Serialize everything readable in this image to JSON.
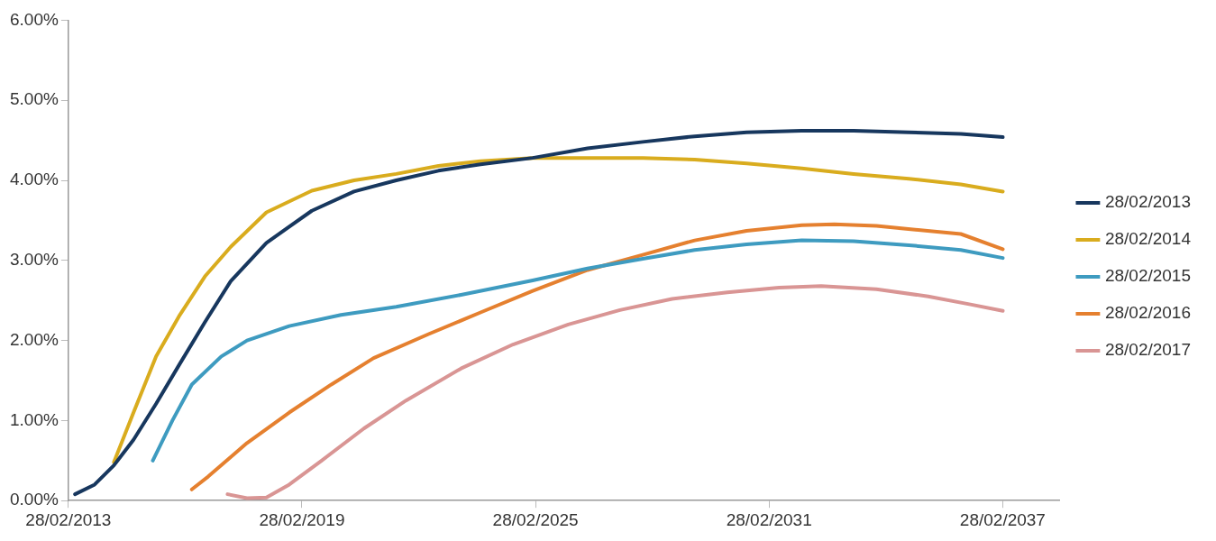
{
  "chart_data": {
    "type": "line",
    "legend": "right",
    "grid": false,
    "marker": "none",
    "line_style": "solid",
    "xlim": [
      "2013-02-28",
      "2038-08-15"
    ],
    "xticks": [
      {
        "value": "2013-02-28",
        "label": "28/02/2013"
      },
      {
        "value": "2019-02-28",
        "label": "28/02/2019"
      },
      {
        "value": "2025-02-28",
        "label": "28/02/2025"
      },
      {
        "value": "2031-02-28",
        "label": "28/02/2031"
      },
      {
        "value": "2037-02-28",
        "label": "28/02/2037"
      }
    ],
    "ylim": [
      0,
      6
    ],
    "yticks": [
      {
        "value": 0,
        "label": "0.00%"
      },
      {
        "value": 1,
        "label": "1.00%"
      },
      {
        "value": 2,
        "label": "2.00%"
      },
      {
        "value": 3,
        "label": "3.00%"
      },
      {
        "value": 4,
        "label": "4.00%"
      },
      {
        "value": 5,
        "label": "5.00%"
      },
      {
        "value": 6,
        "label": "6.00%"
      }
    ],
    "series": [
      {
        "name": "28/02/2013",
        "color": "#17375e",
        "x": [
          "2013-05",
          "2013-11",
          "2014-05",
          "2014-11",
          "2015-06",
          "2016-01",
          "2016-09",
          "2017-05",
          "2018-04",
          "2019-06",
          "2020-07",
          "2021-08",
          "2022-09",
          "2023-10",
          "2025-02",
          "2026-07",
          "2027-12",
          "2029-04",
          "2030-08",
          "2032-01",
          "2033-05",
          "2034-10",
          "2036-02",
          "2037-03"
        ],
        "values": [
          0.08,
          0.2,
          0.44,
          0.76,
          1.21,
          1.69,
          2.23,
          2.74,
          3.22,
          3.62,
          3.86,
          4.0,
          4.12,
          4.2,
          4.28,
          4.4,
          4.48,
          4.55,
          4.6,
          4.62,
          4.62,
          4.6,
          4.58,
          4.54
        ]
      },
      {
        "name": "28/02/2014",
        "color": "#d9ac1e",
        "x": [
          "2014-05",
          "2014-11",
          "2015-06",
          "2016-01",
          "2016-09",
          "2017-05",
          "2018-04",
          "2019-06",
          "2020-07",
          "2021-08",
          "2022-09",
          "2023-10",
          "2025-02",
          "2027-12",
          "2029-04",
          "2030-08",
          "2032-01",
          "2033-05",
          "2034-10",
          "2036-02",
          "2037-03"
        ],
        "values": [
          0.48,
          1.1,
          1.8,
          2.3,
          2.8,
          3.17,
          3.6,
          3.87,
          4.0,
          4.08,
          4.18,
          4.24,
          4.28,
          4.28,
          4.26,
          4.21,
          4.15,
          4.08,
          4.02,
          3.95,
          3.86
        ]
      },
      {
        "name": "28/02/2015",
        "color": "#3e9bc0",
        "x": [
          "2015-05",
          "2015-11",
          "2016-05",
          "2017-02",
          "2017-10",
          "2018-11",
          "2020-03",
          "2021-08",
          "2023-04",
          "2025-02",
          "2026-07",
          "2027-12",
          "2029-04",
          "2030-08",
          "2032-01",
          "2033-05",
          "2034-10",
          "2036-02",
          "2037-03"
        ],
        "values": [
          0.5,
          1.0,
          1.45,
          1.8,
          2.0,
          2.18,
          2.32,
          2.42,
          2.57,
          2.75,
          2.9,
          3.02,
          3.13,
          3.2,
          3.25,
          3.24,
          3.19,
          3.13,
          3.03
        ]
      },
      {
        "name": "28/02/2016",
        "color": "#e5802f",
        "x": [
          "2016-05",
          "2016-10",
          "2017-10",
          "2018-11",
          "2019-12",
          "2021-01",
          "2022-06",
          "2023-10",
          "2025-02",
          "2026-07",
          "2027-12",
          "2029-04",
          "2030-08",
          "2032-01",
          "2032-11",
          "2033-12",
          "2036-02",
          "2037-03"
        ],
        "values": [
          0.14,
          0.3,
          0.72,
          1.1,
          1.45,
          1.78,
          2.08,
          2.35,
          2.62,
          2.88,
          3.07,
          3.25,
          3.37,
          3.44,
          3.45,
          3.43,
          3.33,
          3.14
        ]
      },
      {
        "name": "28/02/2017",
        "color": "#d99594",
        "x": [
          "2017-04",
          "2017-10",
          "2018-04",
          "2018-11",
          "2019-09",
          "2020-10",
          "2021-11",
          "2023-04",
          "2024-08",
          "2026-01",
          "2027-05",
          "2028-09",
          "2030-02",
          "2031-06",
          "2032-07",
          "2033-12",
          "2035-04",
          "2036-05",
          "2037-03"
        ],
        "values": [
          0.08,
          0.03,
          0.04,
          0.2,
          0.5,
          0.9,
          1.25,
          1.65,
          1.95,
          2.2,
          2.38,
          2.52,
          2.6,
          2.66,
          2.68,
          2.64,
          2.55,
          2.45,
          2.37
        ]
      }
    ]
  }
}
